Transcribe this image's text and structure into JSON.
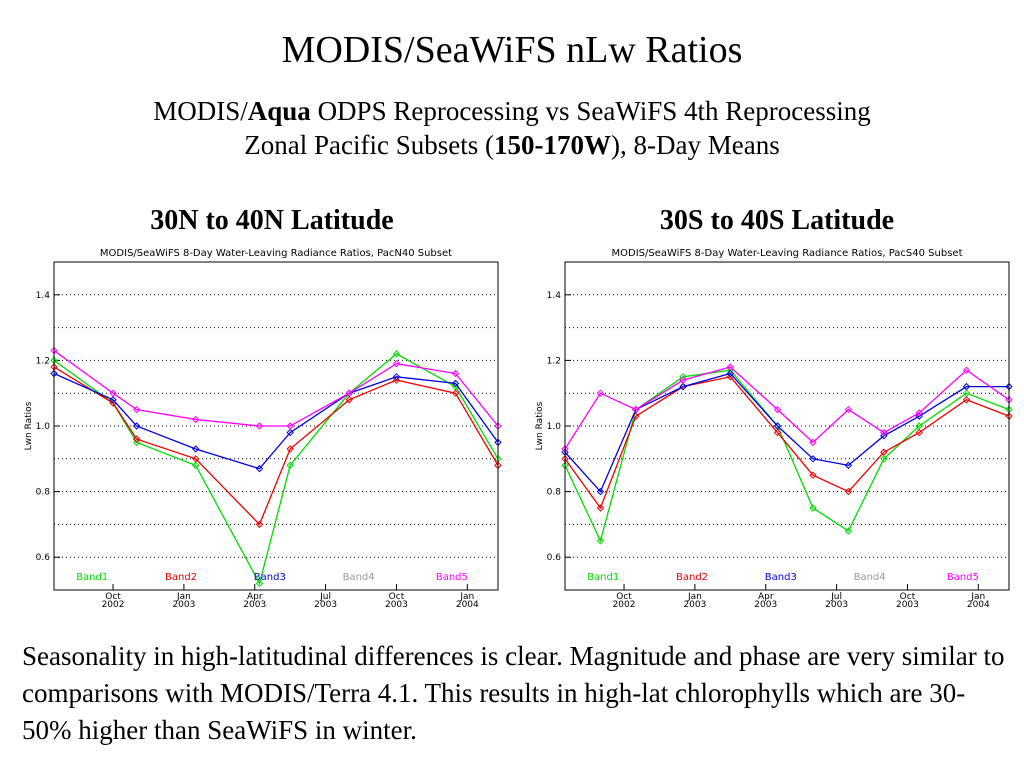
{
  "header": {
    "title": "MODIS/SeaWiFS nLw Ratios",
    "subtitle": {
      "line1_part1": "MODIS/",
      "line1_bold": "Aqua",
      "line1_part2": " ODPS Reprocessing vs SeaWiFS 4th Reprocessing",
      "line2_part1": "Zonal Pacific Subsets (",
      "line2_bold": "150-170W",
      "line2_part2": "), 8-Day Means"
    }
  },
  "panels": {
    "left_heading": "30N to 40N Latitude",
    "right_heading": "30S to 40S Latitude"
  },
  "caption": "Seasonality in high-latitudinal differences is clear. Magnitude and phase are very similar to comparisons with MODIS/Terra 4.1. This results in high-lat chlorophylls which are 30-50% higher than SeaWiFS in winter.",
  "colors": {
    "Band1": "#00dd00",
    "Band2": "#ee0000",
    "Band3": "#0000dd",
    "Band4": "#999999",
    "Band5": "#ff00ff"
  },
  "chart_data": [
    {
      "type": "line",
      "title": "MODIS/SeaWiFS 8-Day Water-Leaving Radiance Ratios, PacN40 Subset",
      "ylabel": "Lwn Ratios",
      "ylim": [
        0.5,
        1.5
      ],
      "yticks": [
        "0.6",
        "0.8",
        "1.0",
        "1.2",
        "1.4"
      ],
      "ytick_values": [
        0.6,
        0.8,
        1.0,
        1.2,
        1.4
      ],
      "xticks": [
        {
          "month": "Oct",
          "year": "2002"
        },
        {
          "month": "Jan",
          "year": "2003"
        },
        {
          "month": "Apr",
          "year": "2003"
        },
        {
          "month": "Jul",
          "year": "2003"
        },
        {
          "month": "Oct",
          "year": "2003"
        },
        {
          "month": "Jan",
          "year": "2004"
        }
      ],
      "grid": true,
      "legend": [
        "Band1",
        "Band2",
        "Band3",
        "Band4",
        "Band5"
      ],
      "x_months_since_start": [
        0,
        2.5,
        3.5,
        6.0,
        8.7,
        10.0,
        12.5,
        14.5,
        17.0,
        18.8
      ],
      "xlim_months": [
        0,
        18.8
      ],
      "series": [
        {
          "name": "Band1",
          "values": [
            1.2,
            1.07,
            0.95,
            0.88,
            0.52,
            0.88,
            1.1,
            1.22,
            1.12,
            0.9
          ]
        },
        {
          "name": "Band2",
          "values": [
            1.18,
            1.07,
            0.96,
            0.9,
            0.7,
            0.93,
            1.08,
            1.14,
            1.1,
            0.88
          ]
        },
        {
          "name": "Band3",
          "values": [
            1.16,
            1.08,
            1.0,
            0.93,
            0.87,
            0.98,
            1.1,
            1.15,
            1.13,
            0.95
          ]
        },
        {
          "name": "Band5",
          "values": [
            1.23,
            1.1,
            1.05,
            1.02,
            1.0,
            1.0,
            1.1,
            1.19,
            1.16,
            1.0
          ]
        }
      ]
    },
    {
      "type": "line",
      "title": "MODIS/SeaWiFS 8-Day Water-Leaving Radiance Ratios, PacS40 Subset",
      "ylabel": "Lwn Ratios",
      "ylim": [
        0.5,
        1.5
      ],
      "yticks": [
        "0.6",
        "0.8",
        "1.0",
        "1.2",
        "1.4"
      ],
      "ytick_values": [
        0.6,
        0.8,
        1.0,
        1.2,
        1.4
      ],
      "xticks": [
        {
          "month": "Oct",
          "year": "2002"
        },
        {
          "month": "Jan",
          "year": "2003"
        },
        {
          "month": "Apr",
          "year": "2003"
        },
        {
          "month": "Jul",
          "year": "2003"
        },
        {
          "month": "Oct",
          "year": "2003"
        },
        {
          "month": "Jan",
          "year": "2004"
        }
      ],
      "grid": true,
      "legend": [
        "Band1",
        "Band2",
        "Band3",
        "Band4",
        "Band5"
      ],
      "x_months_since_start": [
        0,
        1.5,
        3.0,
        5.0,
        7.0,
        9.0,
        10.5,
        12.0,
        13.5,
        15.0,
        17.0,
        18.8
      ],
      "xlim_months": [
        0,
        18.8
      ],
      "series": [
        {
          "name": "Band1",
          "values": [
            0.88,
            0.65,
            1.05,
            1.15,
            1.17,
            1.0,
            0.75,
            0.68,
            0.9,
            1.0,
            1.1,
            1.05
          ]
        },
        {
          "name": "Band2",
          "values": [
            0.9,
            0.75,
            1.03,
            1.12,
            1.15,
            0.98,
            0.85,
            0.8,
            0.92,
            0.98,
            1.08,
            1.03
          ]
        },
        {
          "name": "Band3",
          "values": [
            0.92,
            0.8,
            1.05,
            1.12,
            1.16,
            1.0,
            0.9,
            0.88,
            0.97,
            1.03,
            1.12,
            1.12
          ]
        },
        {
          "name": "Band5",
          "values": [
            0.93,
            1.1,
            1.05,
            1.14,
            1.18,
            1.05,
            0.95,
            1.05,
            0.98,
            1.04,
            1.17,
            1.08
          ]
        }
      ]
    }
  ]
}
